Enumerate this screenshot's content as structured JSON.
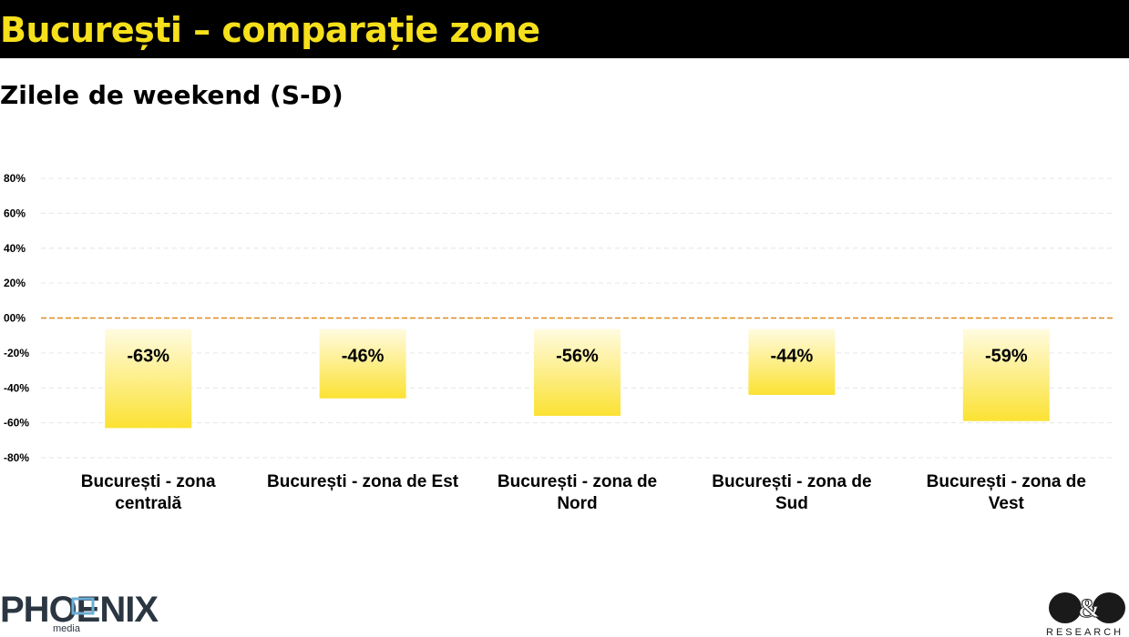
{
  "header": {
    "title": "București – comparație zone",
    "subtitle": "Zilele de weekend (S-D)"
  },
  "colors": {
    "title_bar": "#000000",
    "title_text": "#f6e01b",
    "bar_top": "#fff9cc",
    "bar_bottom": "#fbe233",
    "zero_line": "#e08a1e",
    "grid": "#e6e6e6"
  },
  "chart_data": {
    "type": "bar",
    "categories": [
      [
        "București - zona",
        "centrală"
      ],
      [
        "București - zona de Est"
      ],
      [
        "București - zona de",
        "Nord"
      ],
      [
        "București - zona de",
        "Sud"
      ],
      [
        "București - zona de",
        "Vest"
      ]
    ],
    "values": [
      -63,
      -46,
      -56,
      -44,
      -59
    ],
    "data_labels": [
      "-63%",
      "-46%",
      "-56%",
      "-44%",
      "-59%"
    ],
    "yticks": [
      80,
      60,
      40,
      20,
      0,
      -20,
      -40,
      -60,
      -80
    ],
    "ytick_labels": [
      "80%",
      "60%",
      "40%",
      "20%",
      "00%",
      "-20%",
      "-40%",
      "-60%",
      "-80%"
    ],
    "ylim": [
      -80,
      80
    ],
    "grid": true,
    "legend": "none"
  },
  "footer": {
    "left_logo": "PHOENIX media",
    "right_logo": "D&D RESEARCH"
  }
}
